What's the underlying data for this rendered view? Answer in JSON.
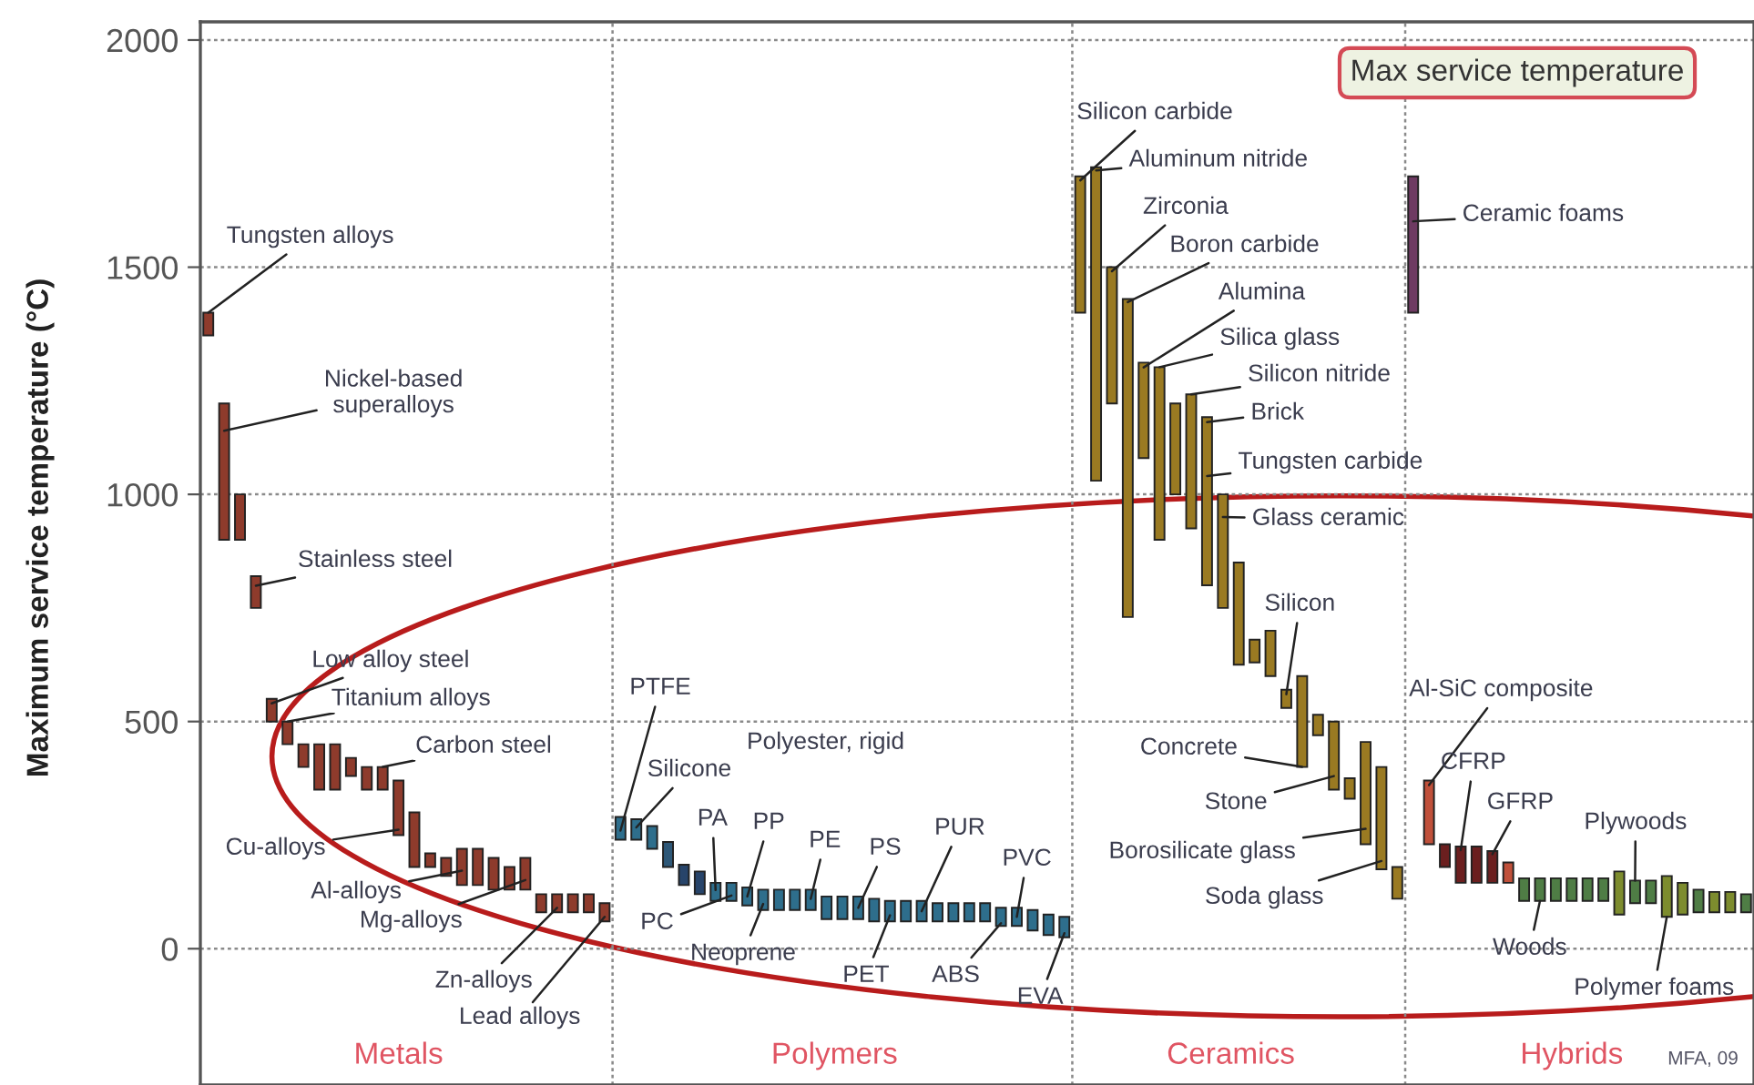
{
  "chart_data": {
    "type": "bar",
    "title": "Max service temperature",
    "ylabel": "Maximum service temperature (°C)",
    "categories": [
      null,
      null,
      null,
      null,
      null,
      null,
      null,
      null,
      null,
      null,
      null,
      null,
      null,
      null,
      null,
      null,
      null,
      null,
      null,
      null,
      null,
      null,
      null,
      null,
      null,
      null,
      null,
      null,
      null,
      null,
      null,
      null,
      null,
      null,
      null,
      null,
      null,
      null,
      null,
      null,
      null,
      null,
      null,
      null,
      null,
      null,
      null,
      null,
      null,
      null,
      null,
      null,
      null,
      null,
      null,
      null,
      null,
      null,
      null,
      null,
      null,
      null,
      null,
      null,
      null,
      null,
      null,
      null,
      null,
      null,
      null,
      null,
      null,
      null,
      null,
      null,
      null,
      null,
      null,
      null,
      null,
      null,
      null,
      null,
      null,
      null,
      null,
      null,
      null,
      null,
      null,
      null,
      null,
      null,
      null,
      null,
      null,
      null
    ],
    "base": [
      1350,
      900,
      900,
      750,
      500,
      450,
      400,
      350,
      350,
      380,
      350,
      350,
      250,
      180,
      180,
      160,
      140,
      140,
      130,
      130,
      130,
      80,
      80,
      80,
      80,
      60,
      240,
      240,
      220,
      180,
      140,
      120,
      105,
      105,
      95,
      85,
      85,
      85,
      85,
      65,
      65,
      65,
      60,
      60,
      60,
      60,
      60,
      60,
      60,
      60,
      50,
      50,
      40,
      30,
      25,
      1400,
      1030,
      1200,
      730,
      1080,
      900,
      1000,
      925,
      800,
      750,
      625,
      630,
      600,
      530,
      400,
      470,
      350,
      330,
      230,
      175,
      110,
      1400,
      230,
      180,
      145,
      145,
      145,
      145,
      105,
      105,
      105,
      105,
      105,
      105,
      75,
      100,
      100,
      70,
      75,
      80,
      80,
      80,
      80
    ],
    "values": [
      50,
      300,
      100,
      70,
      50,
      50,
      50,
      100,
      100,
      40,
      50,
      50,
      120,
      120,
      30,
      40,
      80,
      80,
      70,
      50,
      70,
      40,
      40,
      40,
      40,
      40,
      50,
      45,
      50,
      55,
      45,
      50,
      40,
      40,
      40,
      45,
      45,
      45,
      45,
      50,
      50,
      50,
      50,
      45,
      45,
      45,
      40,
      40,
      40,
      40,
      40,
      40,
      45,
      45,
      45,
      300,
      690,
      300,
      700,
      210,
      380,
      200,
      295,
      370,
      250,
      225,
      50,
      100,
      40,
      200,
      45,
      150,
      45,
      225,
      225,
      70,
      300,
      140,
      50,
      80,
      80,
      70,
      45,
      50,
      50,
      50,
      50,
      50,
      50,
      95,
      50,
      50,
      90,
      70,
      50,
      45,
      45,
      40
    ],
    "colors": [
      "#8e3b2c",
      "#8e3b2c",
      "#8e3b2c",
      "#8e3b2c",
      "#8e3b2c",
      "#8e3b2c",
      "#8e3b2c",
      "#8e3b2c",
      "#8e3b2c",
      "#8e3b2c",
      "#8e3b2c",
      "#8e3b2c",
      "#8e3b2c",
      "#8e3b2c",
      "#8e3b2c",
      "#8e3b2c",
      "#8e3b2c",
      "#8e3b2c",
      "#8e3b2c",
      "#8e3b2c",
      "#8e3b2c",
      "#8e3b2c",
      "#8e3b2c",
      "#8e3b2c",
      "#8e3b2c",
      "#8e3b2c",
      "#2e6e8c",
      "#2e6e8c",
      "#2e6e8c",
      "#2e5878",
      "#27446a",
      "#27446a",
      "#2e6e8c",
      "#2e6e8c",
      "#2e6e8c",
      "#2e6e8c",
      "#2e6e8c",
      "#2e6e8c",
      "#2e6e8c",
      "#2e6e8c",
      "#2e6e8c",
      "#2e6e8c",
      "#2e6e8c",
      "#2e6e8c",
      "#2e6e8c",
      "#2e6e8c",
      "#2e6e8c",
      "#2e6e8c",
      "#2e6e8c",
      "#2e6e8c",
      "#2e6e8c",
      "#2e6e8c",
      "#2e6e8c",
      "#2e6e8c",
      "#2e6e8c",
      "#9a7a22",
      "#9a7a22",
      "#9a7a22",
      "#9a7a22",
      "#9a7a22",
      "#9a7a22",
      "#9a7a22",
      "#9a7a22",
      "#9a7a22",
      "#9a7a22",
      "#9a7a22",
      "#9a7a22",
      "#9a7a22",
      "#9a7a22",
      "#9a7a22",
      "#9a7a22",
      "#9a7a22",
      "#9a7a22",
      "#9a7a22",
      "#9a7a22",
      "#9a7a22",
      "#6e3a62",
      "#c0503a",
      "#6b1f1f",
      "#6b1f1f",
      "#6b1f1f",
      "#6b1f1f",
      "#c0503a",
      "#4f7d45",
      "#4f7d45",
      "#4f7d45",
      "#4f7d45",
      "#4f7d45",
      "#4f7d45",
      "#7d8c2e",
      "#4f7d45",
      "#4f7d45",
      "#7d8c2e",
      "#7d8c2e",
      "#4f7d45",
      "#7d8c2e",
      "#7d8c2e",
      "#4f7d45"
    ],
    "ylim": [
      -300,
      2040
    ],
    "yticks": [
      0,
      500,
      1000,
      1500,
      2000
    ],
    "tick_labels": "y",
    "grid": "y",
    "annotations": [
      "Tungsten alloys",
      "Nickel-based\nsuperalloys",
      "Stainless steel",
      "Low alloy steel",
      "Titanium alloys",
      "Carbon steel",
      "Cu-alloys",
      "Al-alloys",
      "Mg-alloys",
      "Zn-alloys",
      "Lead alloys",
      "PTFE",
      "Silicone",
      "Polyester, rigid",
      "PA",
      "PP",
      "PE",
      "PS",
      "PUR",
      "PVC",
      "PC",
      "Neoprene",
      "PET",
      "ABS",
      "EVA",
      "Silicon carbide",
      "Aluminum nitride",
      "Zirconia",
      "Boron carbide",
      "Alumina",
      "Silica glass",
      "Silicon nitride",
      "Brick",
      "Tungsten carbide",
      "Glass ceramic",
      "Silicon",
      "Concrete",
      "Stone",
      "Borosilicate glass",
      "Soda glass",
      "Ceramic foams",
      "Al-SiC composite",
      "CFRP",
      "GFRP",
      "Plywoods",
      "Woods",
      "Polymer foams",
      "Metals",
      "Polymers",
      "Ceramics",
      "Hybrids",
      "MFA, 09"
    ]
  }
}
